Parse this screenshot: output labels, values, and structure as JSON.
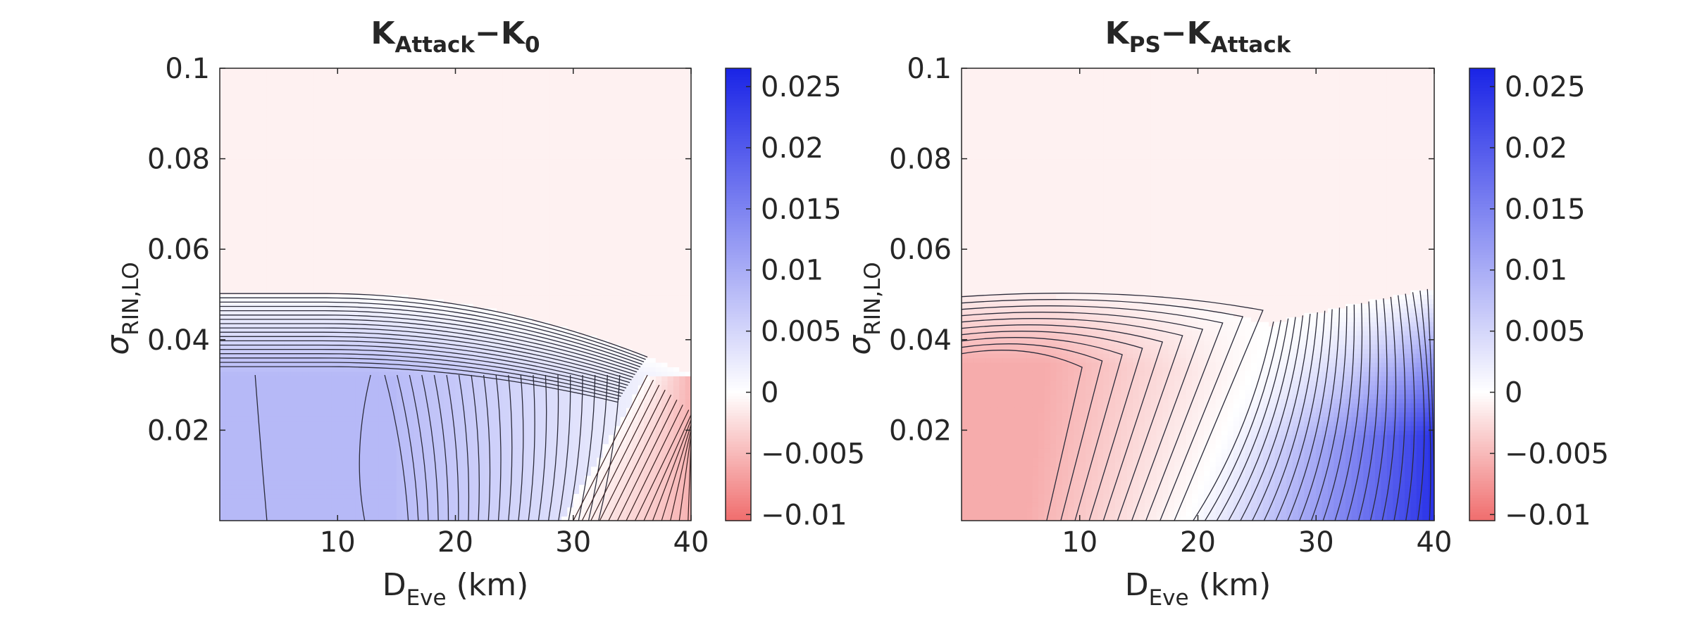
{
  "chart_data": [
    {
      "type": "heatmap",
      "title": {
        "main": "K",
        "sub1": "Attack",
        "sep": "−K",
        "sub2": "0"
      },
      "xlabel": {
        "main": "D",
        "sub": "Eve",
        "unit": "(km)"
      },
      "ylabel": {
        "main": "σ",
        "sub": "RIN,LO"
      },
      "xlim": [
        0,
        40
      ],
      "ylim": [
        0,
        0.1
      ],
      "xticks": [
        10,
        20,
        30,
        40
      ],
      "xtick_labels": [
        "10",
        "20",
        "30",
        "40"
      ],
      "yticks": [
        0.02,
        0.04,
        0.06,
        0.08,
        0.1
      ],
      "ytick_labels": [
        "0.02",
        "0.04",
        "0.06",
        "0.08",
        "0.1"
      ],
      "colorbar": {
        "range": [
          -0.0105,
          0.0265
        ],
        "ticks": [
          0.025,
          0.02,
          0.015,
          0.01,
          0.005,
          0,
          -0.005,
          -0.01
        ],
        "labels": [
          "0.025",
          "0.02",
          "0.015",
          "0.01",
          "0.005",
          "0",
          "−0.005",
          "−0.01"
        ],
        "colors": {
          "positive": "#1a24e6",
          "zero": "#ffffff",
          "negative": "#f06d6d"
        }
      },
      "regions": {
        "flat_positive_value": 0.0085,
        "flat_positive_sigma_max": 0.0322,
        "flat_positive_d_range": [
          0,
          13.3
        ],
        "positive_boundary_sigma_max": 0.0502,
        "positive_boundary_d_end": 36.3,
        "negative_wedge_d_start": 29,
        "negative_wedge_sigma_max": 0.0322,
        "background_value": -0.001
      },
      "contour_count": 30
    },
    {
      "type": "heatmap",
      "title": {
        "main": "K",
        "sub1": "PS",
        "sep": "−K",
        "sub2": "Attack"
      },
      "xlabel": {
        "main": "D",
        "sub": "Eve",
        "unit": "(km)"
      },
      "ylabel": {
        "main": "σ",
        "sub": "RIN,LO"
      },
      "xlim": [
        0,
        40
      ],
      "ylim": [
        0,
        0.1
      ],
      "xticks": [
        10,
        20,
        30,
        40
      ],
      "xtick_labels": [
        "10",
        "20",
        "30",
        "40"
      ],
      "yticks": [
        0.02,
        0.04,
        0.06,
        0.08,
        0.1
      ],
      "ytick_labels": [
        "0.02",
        "0.04",
        "0.06",
        "0.08",
        "0.1"
      ],
      "colorbar": {
        "range": [
          -0.0105,
          0.0265
        ],
        "ticks": [
          0.025,
          0.02,
          0.015,
          0.01,
          0.005,
          0,
          -0.005,
          -0.01
        ],
        "labels": [
          "0.025",
          "0.02",
          "0.015",
          "0.01",
          "0.005",
          "0",
          "−0.005",
          "−0.01"
        ],
        "colors": {
          "positive": "#1a24e6",
          "zero": "#ffffff",
          "negative": "#f06d6d"
        }
      },
      "regions": {
        "zero_crossing_d_at_sigma_0": 19,
        "zero_crossing_d_at_sigma_044": 26.4,
        "negative_boundary_sigma_max": 0.0495,
        "positive_boundary_sigma_at_d40": 0.0515,
        "max_positive_value": 0.025,
        "min_negative_value": -0.006,
        "background_value": -0.001
      },
      "contour_count": 22
    }
  ]
}
